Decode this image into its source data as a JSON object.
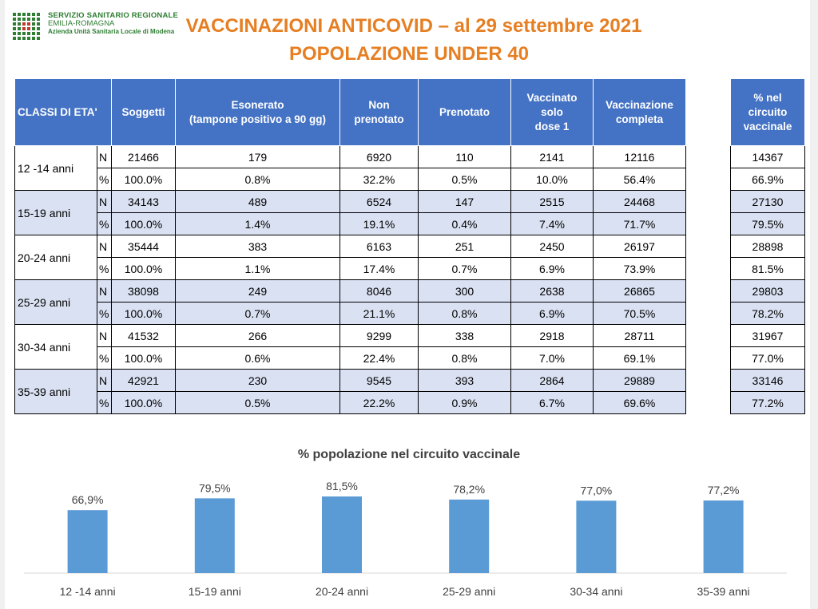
{
  "logo": {
    "line1": "SERVIZIO SANITARIO REGIONALE",
    "line2": "EMILIA-ROMAGNA",
    "line3": "Azienda Unità Sanitaria Locale di Modena"
  },
  "title": {
    "line1": "VACCINAZIONI ANTICOVID – al 29 settembre 2021",
    "line2": "POPOLAZIONE UNDER 40"
  },
  "table": {
    "headers": {
      "classi": "CLASSI DI ETA'",
      "soggetti": "Soggetti",
      "esonerato_1": "Esonerato",
      "esonerato_2": "(tampone positivo a 90 gg)",
      "non_prenotato_1": "Non",
      "non_prenotato_2": "prenotato",
      "prenotato": "Prenotato",
      "dose1_1": "Vaccinato solo",
      "dose1_2": "dose 1",
      "completa_1": "Vaccinazione",
      "completa_2": "completa"
    },
    "side_header": {
      "line1": "% nel",
      "line2": "circuito",
      "line3": "vaccinale"
    },
    "unit_n": "N",
    "unit_pct": "%",
    "rows": [
      {
        "age": "12 -14 anni",
        "n": [
          "21466",
          "179",
          "6920",
          "110",
          "2141",
          "12116"
        ],
        "pct": [
          "100.0%",
          "0.8%",
          "32.2%",
          "0.5%",
          "10.0%",
          "56.4%"
        ],
        "circuito_n": "14367",
        "circuito_pct": "66.9%"
      },
      {
        "age": "15-19 anni",
        "n": [
          "34143",
          "489",
          "6524",
          "147",
          "2515",
          "24468"
        ],
        "pct": [
          "100.0%",
          "1.4%",
          "19.1%",
          "0.4%",
          "7.4%",
          "71.7%"
        ],
        "circuito_n": "27130",
        "circuito_pct": "79.5%"
      },
      {
        "age": "20-24 anni",
        "n": [
          "35444",
          "383",
          "6163",
          "251",
          "2450",
          "26197"
        ],
        "pct": [
          "100.0%",
          "1.1%",
          "17.4%",
          "0.7%",
          "6.9%",
          "73.9%"
        ],
        "circuito_n": "28898",
        "circuito_pct": "81.5%"
      },
      {
        "age": "25-29 anni",
        "n": [
          "38098",
          "249",
          "8046",
          "300",
          "2638",
          "26865"
        ],
        "pct": [
          "100.0%",
          "0.7%",
          "21.1%",
          "0.8%",
          "6.9%",
          "70.5%"
        ],
        "circuito_n": "29803",
        "circuito_pct": "78.2%"
      },
      {
        "age": "30-34 anni",
        "n": [
          "41532",
          "266",
          "9299",
          "338",
          "2918",
          "28711"
        ],
        "pct": [
          "100.0%",
          "0.6%",
          "22.4%",
          "0.8%",
          "7.0%",
          "69.1%"
        ],
        "circuito_n": "31967",
        "circuito_pct": "77.0%"
      },
      {
        "age": "35-39 anni",
        "n": [
          "42921",
          "230",
          "9545",
          "393",
          "2864",
          "29889"
        ],
        "pct": [
          "100.0%",
          "0.5%",
          "22.2%",
          "0.9%",
          "6.7%",
          "69.6%"
        ],
        "circuito_n": "33146",
        "circuito_pct": "77.2%"
      }
    ]
  },
  "chart_data": {
    "type": "bar",
    "title": "% popolazione nel circuito vaccinale",
    "categories": [
      "12 -14 anni",
      "15-19 anni",
      "20-24 anni",
      "25-29 anni",
      "30-34 anni",
      "35-39 anni"
    ],
    "values": [
      66.9,
      79.5,
      81.5,
      78.2,
      77.0,
      77.2
    ],
    "data_labels": [
      "66,9%",
      "79,5%",
      "81,5%",
      "78,2%",
      "77,0%",
      "77,2%"
    ],
    "xlabel": "",
    "ylabel": "",
    "grid": false,
    "legend": "none",
    "bar_color": "#5b9bd5"
  },
  "colors": {
    "title": "#e67e22",
    "header_bg": "#4472c4",
    "band_bg": "#dae1f2",
    "logo_green": "#2e7d32",
    "logo_red": "#c0392b"
  }
}
